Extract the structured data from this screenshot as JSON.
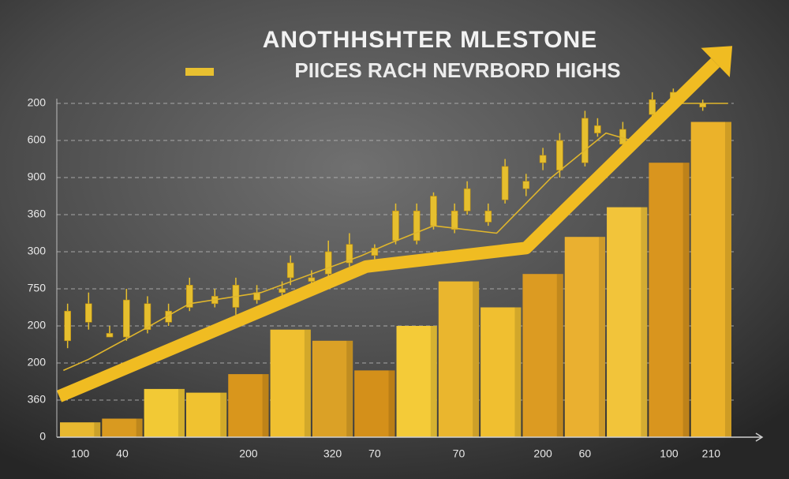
{
  "chart_data": {
    "type": "bar",
    "title": "ANOTHHSHTER MLESTONE",
    "subtitle": "PIICES RACH NEVRBORD HIGHS",
    "categories": [
      "100",
      "40",
      null,
      null,
      "200",
      null,
      "320",
      "70",
      null,
      "70",
      null,
      "200",
      "60",
      null,
      "100",
      "210"
    ],
    "values": [
      0.4,
      0.5,
      1.3,
      1.2,
      1.7,
      2.9,
      2.6,
      1.8,
      3.0,
      4.2,
      3.5,
      4.4,
      5.4,
      6.2,
      7.4,
      8.5
    ],
    "colors": [
      "#e8b830",
      "#d99a20",
      "#f2c935",
      "#f0c230",
      "#d9961c",
      "#f0c030",
      "#dba126",
      "#d4901a",
      "#f4cb38",
      "#eab62e",
      "#f0bf30",
      "#dc9b22",
      "#eab030",
      "#f2c43a",
      "#d9951e",
      "#ebb22a"
    ],
    "xlim": [
      0,
      16
    ],
    "ylim": [
      0,
      10.5
    ],
    "yticks": [
      0,
      {
        "value": 1,
        "label": "360"
      },
      {
        "value": 2,
        "label": "200"
      },
      {
        "value": 3,
        "label": "200"
      },
      {
        "value": 4,
        "label": "750"
      },
      {
        "value": 5,
        "label": "300"
      },
      {
        "value": 6,
        "label": "360"
      },
      {
        "value": 7,
        "label": "900"
      },
      {
        "value": 8,
        "label": "600"
      },
      {
        "value": 9,
        "label": "200"
      }
    ],
    "grid": true,
    "candles": {
      "color": "#e6bf2e",
      "x": [
        0.2,
        0.7,
        1.2,
        1.6,
        2.1,
        2.6,
        3.1,
        3.7,
        4.2,
        4.7,
        5.3,
        5.5,
        6.0,
        6.4,
        6.9,
        7.5,
        8.0,
        8.5,
        8.9,
        9.4,
        9.7,
        10.2,
        10.6,
        11.1,
        11.5,
        11.9,
        12.5,
        12.8,
        13.4,
        14.1,
        14.6,
        15.3
      ],
      "open": [
        2.6,
        3.1,
        2.8,
        2.7,
        2.9,
        3.1,
        3.5,
        3.8,
        3.5,
        3.7,
        3.9,
        4.7,
        4.2,
        4.4,
        4.7,
        5.1,
        5.3,
        6.1,
        5.7,
        5.6,
        6.7,
        5.8,
        6.4,
        6.9,
        7.4,
        7.2,
        7.4,
        8.2,
        8.3,
        8.7,
        9.0,
        8.9
      ],
      "high": [
        3.6,
        3.9,
        3.0,
        4.0,
        3.8,
        3.6,
        4.3,
        4.0,
        4.3,
        4.1,
        4.2,
        4.9,
        4.5,
        5.3,
        5.5,
        5.2,
        6.3,
        6.3,
        6.6,
        6.3,
        6.9,
        6.3,
        7.5,
        7.1,
        7.8,
        8.2,
        8.8,
        8.6,
        8.5,
        9.3,
        9.4,
        9.1
      ],
      "low": [
        2.4,
        2.9,
        2.7,
        2.6,
        2.8,
        3.0,
        3.4,
        3.5,
        3.3,
        3.6,
        3.8,
        4.1,
        4.1,
        4.2,
        4.6,
        4.8,
        5.2,
        5.2,
        5.6,
        5.5,
        6.0,
        5.7,
        6.3,
        6.5,
        7.2,
        7.0,
        7.3,
        8.1,
        7.7,
        8.6,
        8.9,
        8.8
      ],
      "close": [
        3.4,
        3.6,
        2.7,
        3.7,
        3.6,
        3.4,
        4.1,
        3.6,
        4.1,
        3.9,
        4.0,
        4.3,
        4.3,
        5.0,
        5.2,
        4.9,
        6.1,
        5.3,
        6.5,
        6.1,
        6.1,
        6.1,
        7.3,
        6.7,
        7.6,
        8.0,
        8.6,
        8.4,
        7.9,
        9.1,
        9.3,
        9.0
      ]
    },
    "trend": {
      "color": "#e0b62c",
      "x": [
        0.1,
        0.7,
        2.0,
        3.1,
        4.8,
        7.2,
        7.8,
        8.9,
        10.4,
        11.7,
        13.0,
        13.6,
        14.5,
        15.9
      ],
      "values": [
        1.8,
        2.1,
        2.9,
        3.6,
        3.9,
        4.9,
        5.2,
        5.7,
        5.5,
        7.0,
        8.2,
        8.0,
        9.0,
        9.0
      ]
    },
    "arrow": {
      "color": "#f0bc22",
      "x": [
        0.0,
        7.3,
        11.1,
        15.6
      ],
      "values": [
        1.1,
        4.6,
        5.1,
        10.1
      ]
    }
  }
}
